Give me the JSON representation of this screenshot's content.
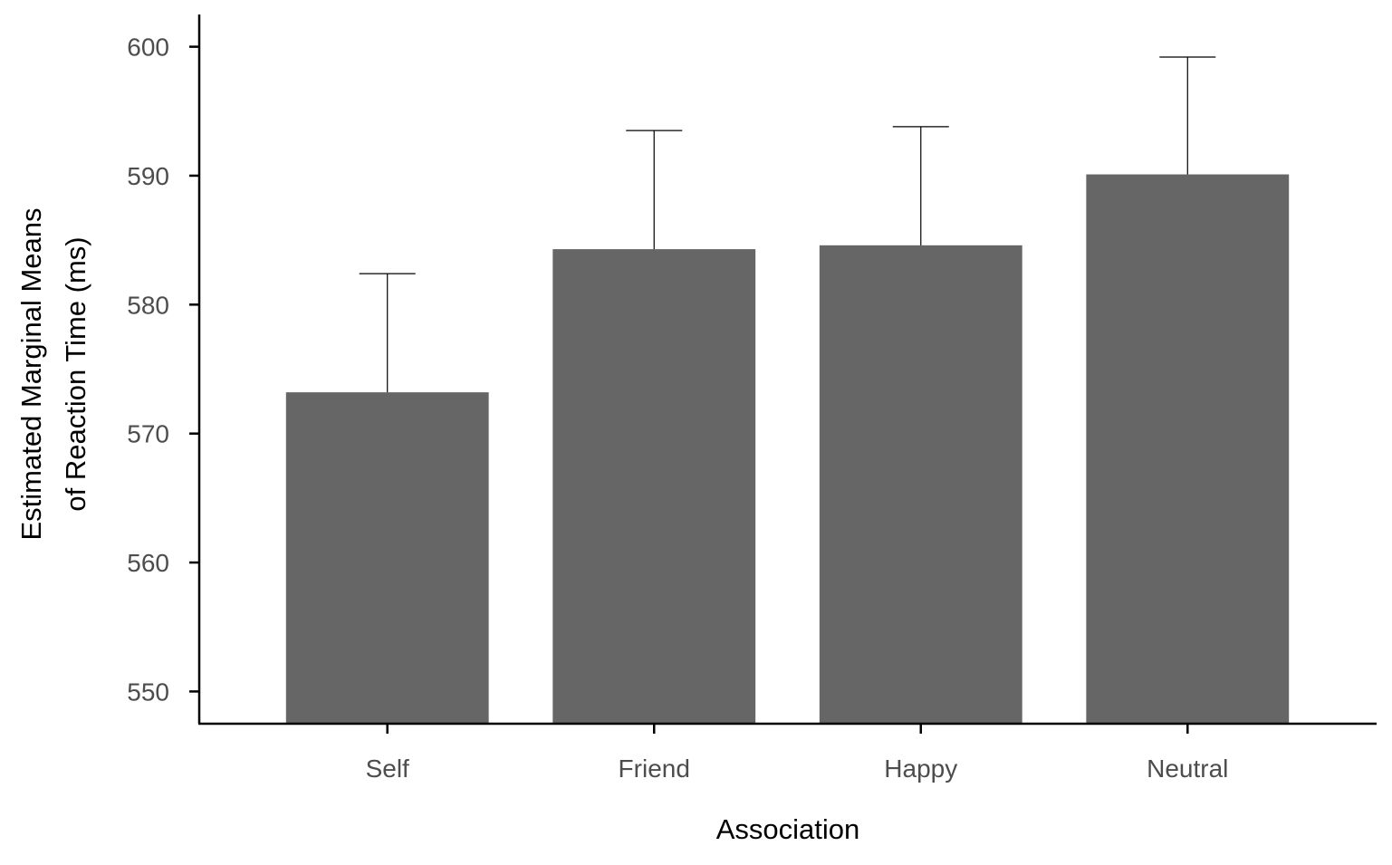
{
  "chart_data": {
    "type": "bar",
    "title": "",
    "xlabel": "Association",
    "ylabel_lines": [
      "Estimated Marginal Means",
      "of Reaction Time (ms)"
    ],
    "categories": [
      "Self",
      "Friend",
      "Happy",
      "Neutral"
    ],
    "values": [
      573.2,
      584.3,
      584.6,
      590.1
    ],
    "error_upper": [
      582.4,
      593.5,
      593.8,
      599.2
    ],
    "ylim": [
      547.5,
      602.5
    ],
    "yticks": [
      550,
      560,
      570,
      580,
      590,
      600
    ],
    "grid": false,
    "legend": "none",
    "colors": {
      "bar": "#666666",
      "axis": "#000000",
      "error_bar": "#000000",
      "tick_label": "#4d4d4d"
    }
  }
}
